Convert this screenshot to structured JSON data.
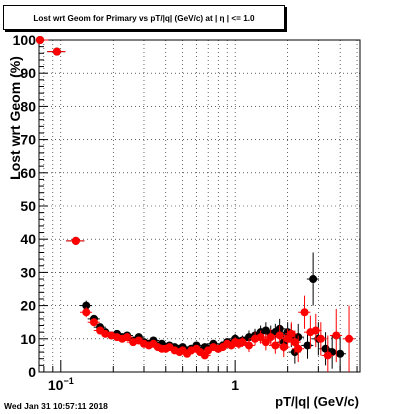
{
  "chart_data": {
    "type": "scatter",
    "title": "Lost wrt Geom for Primary vs pT/|q| (GeV/c) at |  η | <= 1.0",
    "xlabel": "pT/|q| (GeV/c)",
    "ylabel": "Lost wrt Geom (%)",
    "xscale": "log",
    "xlim": [
      0.075,
      5.2
    ],
    "ylim": [
      0,
      100
    ],
    "y_ticks": [
      0,
      10,
      20,
      30,
      40,
      50,
      60,
      70,
      80,
      90,
      100
    ],
    "x_tick_labels": [
      {
        "value": 0.1,
        "base": "10",
        "exp": "−1"
      },
      {
        "value": 1,
        "base": "1",
        "exp": ""
      }
    ],
    "grid": true,
    "colors": {
      "series_black": "#000000",
      "series_red": "#ff0000"
    },
    "series": [
      {
        "color": "#000000",
        "x": [
          0.076,
          0.095,
          0.122,
          0.14,
          0.155,
          0.168,
          0.18,
          0.195,
          0.21,
          0.225,
          0.24,
          0.26,
          0.28,
          0.3,
          0.32,
          0.34,
          0.36,
          0.38,
          0.4,
          0.42,
          0.45,
          0.48,
          0.5,
          0.53,
          0.56,
          0.6,
          0.63,
          0.67,
          0.7,
          0.75,
          0.8,
          0.85,
          0.9,
          0.95,
          1.0,
          1.05,
          1.1,
          1.2,
          1.3,
          1.4,
          1.5,
          1.6,
          1.7,
          1.8,
          1.9,
          2.0,
          2.1,
          2.2,
          2.3,
          2.6,
          2.8,
          3.0,
          3.3,
          3.6,
          4.0
        ],
        "y": [
          100,
          96.5,
          39.5,
          20,
          16,
          13.5,
          12,
          11,
          11.5,
          10.5,
          11,
          9.5,
          10.5,
          9,
          8.5,
          9.5,
          8,
          8.5,
          7.5,
          8,
          7.5,
          7,
          7.5,
          6.5,
          7,
          8,
          6.5,
          7.5,
          7,
          8.5,
          7,
          8,
          9,
          8.5,
          10,
          9,
          9.5,
          10.5,
          11,
          12,
          12.5,
          11.5,
          12,
          13,
          9,
          12,
          11,
          6,
          10.5,
          8,
          28,
          10,
          7,
          6,
          5.5
        ],
        "yerr": [
          0.5,
          0.8,
          1.2,
          1.5,
          1.2,
          1,
          1,
          1,
          1,
          1,
          1,
          1,
          1,
          1,
          1,
          1,
          1,
          1,
          1,
          1,
          1,
          1,
          1,
          1,
          1,
          1,
          1,
          1,
          1,
          1,
          1,
          1.2,
          1.2,
          1.2,
          1.5,
          1.5,
          1.5,
          2,
          2,
          2,
          2.5,
          2.5,
          2.5,
          3,
          3,
          3,
          3.5,
          3.5,
          4,
          4,
          8,
          5,
          5,
          5,
          5
        ]
      },
      {
        "color": "#ff0000",
        "x": [
          0.076,
          0.095,
          0.122,
          0.14,
          0.155,
          0.168,
          0.18,
          0.195,
          0.21,
          0.225,
          0.24,
          0.26,
          0.28,
          0.3,
          0.32,
          0.34,
          0.36,
          0.38,
          0.4,
          0.42,
          0.45,
          0.48,
          0.5,
          0.53,
          0.56,
          0.6,
          0.63,
          0.67,
          0.7,
          0.75,
          0.8,
          0.85,
          0.9,
          0.95,
          1.0,
          1.05,
          1.1,
          1.2,
          1.3,
          1.4,
          1.5,
          1.6,
          1.7,
          1.8,
          1.9,
          2.0,
          2.1,
          2.2,
          2.3,
          2.5,
          2.7,
          2.9,
          3.1,
          3.4,
          3.8,
          4.5
        ],
        "y": [
          100,
          96.5,
          39.5,
          18,
          15,
          12.5,
          11.5,
          11,
          10.5,
          10,
          10.5,
          9,
          9.5,
          8.5,
          8,
          8.5,
          7.5,
          7,
          7,
          7.5,
          6.5,
          6,
          6.5,
          5.5,
          6.5,
          7,
          6,
          5,
          6.5,
          7.5,
          7,
          7.5,
          8.5,
          8,
          9,
          8.5,
          9,
          8,
          10,
          10.5,
          9,
          10.5,
          8,
          11,
          7.5,
          10,
          11.5,
          9,
          7,
          18,
          12,
          12.5,
          10,
          5,
          11,
          10
        ],
        "yerr": [
          0.5,
          0.8,
          1.2,
          1.5,
          1.2,
          1,
          1,
          1,
          1,
          1,
          1,
          1,
          1,
          1,
          1,
          1,
          1,
          1,
          1,
          1,
          1,
          1,
          1,
          1,
          1,
          1,
          1,
          1,
          1,
          1,
          1,
          1.2,
          1.2,
          1.2,
          1.5,
          1.5,
          1.5,
          2,
          2,
          2,
          2.5,
          2.5,
          2.5,
          3,
          3,
          3,
          3.5,
          3.5,
          4,
          5,
          5,
          5,
          5,
          6,
          8,
          10
        ]
      }
    ]
  },
  "footer_text": "Wed Jan 31 10:57:11 2018"
}
